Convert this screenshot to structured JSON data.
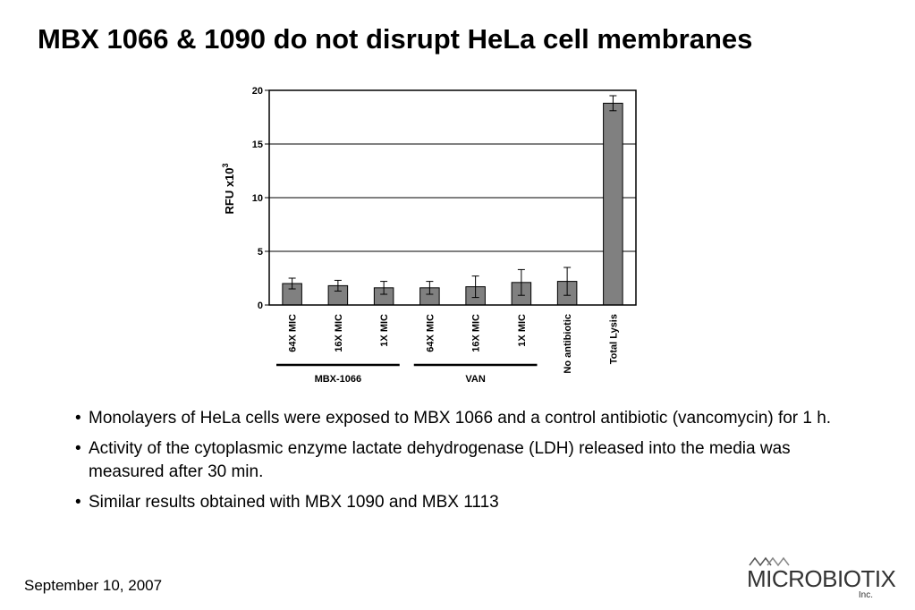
{
  "slide": {
    "title": "MBX 1066 & 1090 do not disrupt HeLa cell membranes",
    "bullets": [
      "Monolayers of HeLa cells were exposed to MBX 1066 and a control antibiotic (vancomycin) for 1 h.",
      "Activity of the cytoplasmic enzyme lactate dehydrogenase (LDH) released into the media was measured after 30 min.",
      "Similar results obtained with MBX 1090 and  MBX 1113"
    ],
    "bullet_symbol": "•",
    "footer_date": "September 10, 2007",
    "logo": {
      "text": "MICROBIOTIX",
      "suffix": "Inc.",
      "color": "#333333"
    }
  },
  "chart_data": {
    "type": "bar",
    "title": "",
    "ylabel": "RFU x10",
    "ylabel_superscript": "3",
    "xlabel": "",
    "ylim": [
      0,
      20
    ],
    "yticks": [
      0,
      5,
      10,
      15,
      20
    ],
    "grid": true,
    "bar_color": "#808080",
    "categories": [
      "64X MIC",
      "16X MIC",
      "1X MIC",
      "64X MIC",
      "16X MIC",
      "1X MIC",
      "No antibiotic",
      "Total Lysis"
    ],
    "values": [
      2.0,
      1.8,
      1.6,
      1.6,
      1.7,
      2.1,
      2.2,
      18.8
    ],
    "errors": [
      0.5,
      0.5,
      0.6,
      0.6,
      1.0,
      1.2,
      1.3,
      0.7
    ],
    "groups": [
      {
        "label": "MBX-1066",
        "categories": [
          0,
          1,
          2
        ]
      },
      {
        "label": "VAN",
        "categories": [
          3,
          4,
          5
        ]
      }
    ]
  }
}
